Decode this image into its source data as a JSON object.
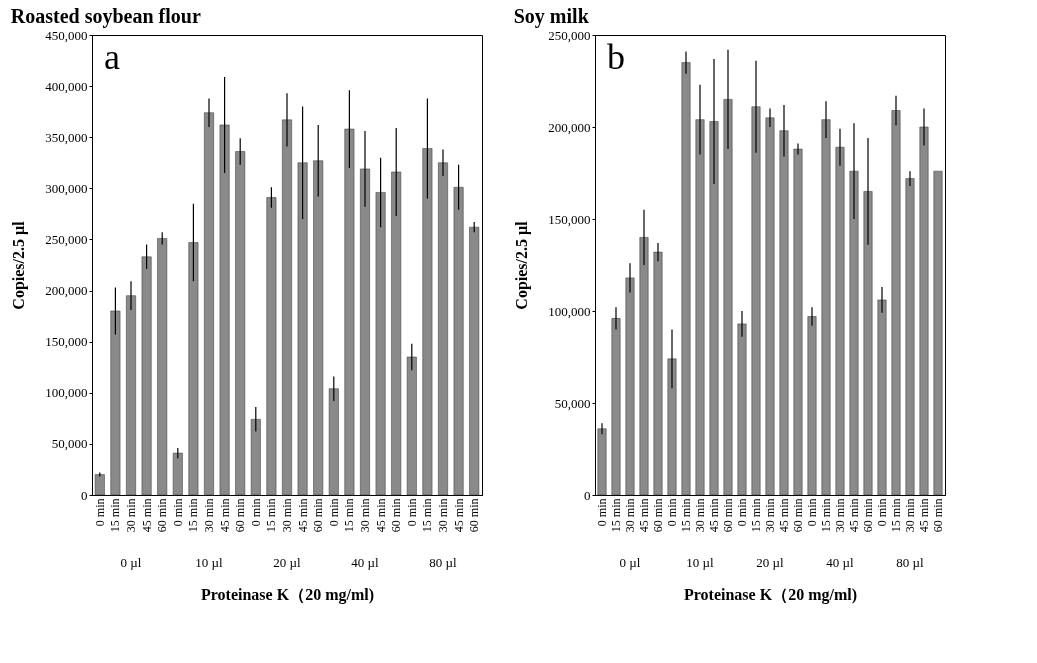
{
  "chart_data": [
    {
      "type": "bar",
      "title": "Roasted soybean flour",
      "xlabel": "Proteinase K（20 mg/ml)",
      "ylabel": "Copies/2.5 µl",
      "annotations": [
        "a",
        "0 µl",
        "10 µl",
        "20 µl",
        "40 µl",
        "80 µl"
      ],
      "categories": [
        "0 min",
        "15 min",
        "30 min",
        "45 min",
        "60 min",
        "0 min",
        "15 min",
        "30 min",
        "45 min",
        "60 min",
        "0 min",
        "15 min",
        "30 min",
        "45 min",
        "60 min",
        "0 min",
        "15 min",
        "30 min",
        "45 min",
        "60 min",
        "0 min",
        "15 min",
        "30 min",
        "45 min",
        "60 min"
      ],
      "values": [
        20000,
        180000,
        195000,
        233000,
        251000,
        41000,
        247000,
        374000,
        362000,
        336000,
        74000,
        291000,
        367000,
        325000,
        327000,
        104000,
        358000,
        319000,
        296000,
        316000,
        135000,
        339000,
        325000,
        301000,
        262000
      ],
      "errors": [
        2000,
        23000,
        14000,
        12000,
        6000,
        5000,
        38000,
        14000,
        47000,
        13000,
        12000,
        10000,
        26000,
        55000,
        35000,
        12000,
        38000,
        37000,
        34000,
        43000,
        13000,
        49000,
        13000,
        22000,
        5000
      ],
      "color": "#8a8a8a",
      "ylim": [
        0,
        450000
      ],
      "yticks": [
        0,
        {
          "value": 50000,
          "label": "50,000"
        },
        {
          "value": 100000,
          "label": "100,000"
        },
        {
          "value": 150000,
          "label": "150,000"
        },
        {
          "value": 200000,
          "label": "200,000"
        },
        {
          "value": 250000,
          "label": "250,000"
        },
        {
          "value": 300000,
          "label": "300,000"
        },
        {
          "value": 350000,
          "label": "350,000"
        },
        {
          "value": 400000,
          "label": "400,000"
        },
        {
          "value": 450000,
          "label": "450,000"
        }
      ],
      "grid": false
    },
    {
      "type": "bar",
      "title": "Soy milk",
      "xlabel": "Proteinase K（20 mg/ml)",
      "ylabel": "Copies/2.5 µl",
      "annotations": [
        "b",
        "0 µl",
        "10 µl",
        "20 µl",
        "40 µl",
        "80 µl"
      ],
      "categories": [
        "0 min",
        "15 min",
        "30 min",
        "45 min",
        "60 min",
        "0 min",
        "15 min",
        "30 min",
        "45 min",
        "60 min",
        "0 min",
        "15 min",
        "30 min",
        "45 min",
        "60 min",
        "0 min",
        "15 min",
        "30 min",
        "45 min",
        "60 min",
        "0 min",
        "15 min",
        "30 min",
        "45 min",
        "60 min"
      ],
      "values": [
        36000,
        96000,
        118000,
        140000,
        132000,
        74000,
        235000,
        204000,
        203000,
        215000,
        93000,
        211000,
        205000,
        198000,
        188000,
        97000,
        204000,
        189000,
        176000,
        165000,
        106000,
        209000,
        172000,
        200000,
        176000
      ],
      "errors": [
        3000,
        6000,
        8000,
        15000,
        5000,
        16000,
        6000,
        19000,
        34000,
        27000,
        7000,
        25000,
        5000,
        14000,
        3000,
        5000,
        10000,
        10000,
        26000,
        29000,
        7000,
        8000,
        4000,
        10000,
        null
      ],
      "color": "#8a8a8a",
      "ylim": [
        0,
        250000
      ],
      "yticks": [
        0,
        {
          "value": 50000,
          "label": "50,000"
        },
        {
          "value": 100000,
          "label": "100,000"
        },
        {
          "value": 150000,
          "label": "150,000"
        },
        {
          "value": 200000,
          "label": "200,000"
        },
        {
          "value": 250000,
          "label": "250,000"
        }
      ],
      "grid": false
    }
  ]
}
